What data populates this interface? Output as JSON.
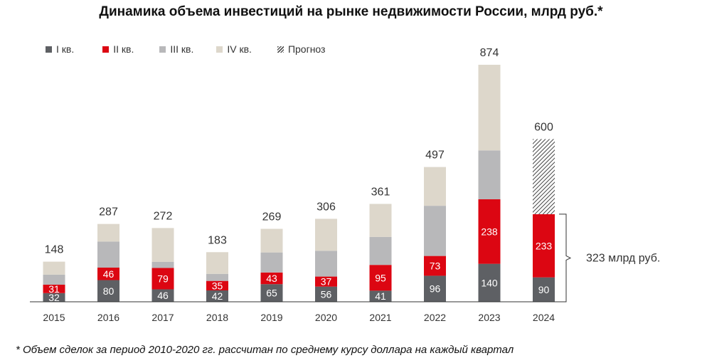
{
  "title": "Динамика объема инвестиций на рынке недвижимости России, млрд руб.*",
  "footnote": "* Объем сделок за период 2010-2020 гг. рассчитан по среднему курсу доллара на каждый квартал",
  "legend": [
    {
      "label": "I кв.",
      "color": "#5e6064"
    },
    {
      "label": "II кв.",
      "color": "#dc0612"
    },
    {
      "label": "III кв.",
      "color": "#b8b8ba"
    },
    {
      "label": "IV кв.",
      "color": "#ddd7cb"
    },
    {
      "label": "Прогноз",
      "color": "hatch"
    }
  ],
  "bracket_label": "323 млрд руб.",
  "chart_data": {
    "type": "bar",
    "stacked": true,
    "title": "Динамика объема инвестиций на рынке недвижимости России, млрд руб.*",
    "categories": [
      "2015",
      "2016",
      "2017",
      "2018",
      "2019",
      "2020",
      "2021",
      "2022",
      "2023",
      "2024"
    ],
    "series": [
      {
        "name": "I кв.",
        "color": "#5e6064",
        "values": [
          32,
          80,
          46,
          42,
          65,
          56,
          41,
          96,
          140,
          90
        ]
      },
      {
        "name": "II кв.",
        "color": "#dc0612",
        "values": [
          31,
          46,
          79,
          35,
          43,
          37,
          95,
          73,
          238,
          233
        ]
      },
      {
        "name": "III кв.",
        "color": "#b8b8ba",
        "values": [
          37,
          96,
          22,
          26,
          74,
          95,
          103,
          185,
          180,
          null
        ]
      },
      {
        "name": "IV кв.",
        "color": "#ddd7cb",
        "values": [
          48,
          65,
          125,
          80,
          87,
          118,
          122,
          143,
          316,
          null
        ]
      },
      {
        "name": "Прогноз",
        "color": "hatch",
        "values": [
          null,
          null,
          null,
          null,
          null,
          null,
          null,
          null,
          null,
          277
        ]
      }
    ],
    "segment_labels": {
      "I кв.": [
        "32",
        "80",
        "46",
        "42",
        "65",
        "56",
        "41",
        "96",
        "140",
        "90"
      ],
      "II кв.": [
        "31",
        "46",
        "79",
        "35",
        "43",
        "37",
        "95",
        "73",
        "238",
        "233"
      ]
    },
    "totals": [
      "148",
      "287",
      "272",
      "183",
      "269",
      "306",
      "361",
      "497",
      "874",
      "600"
    ],
    "bracket": {
      "from": 0,
      "to": 323,
      "category": "2024",
      "label": "323 млрд руб."
    },
    "ylim": [
      0,
      874
    ],
    "xlabel": "",
    "ylabel": ""
  }
}
